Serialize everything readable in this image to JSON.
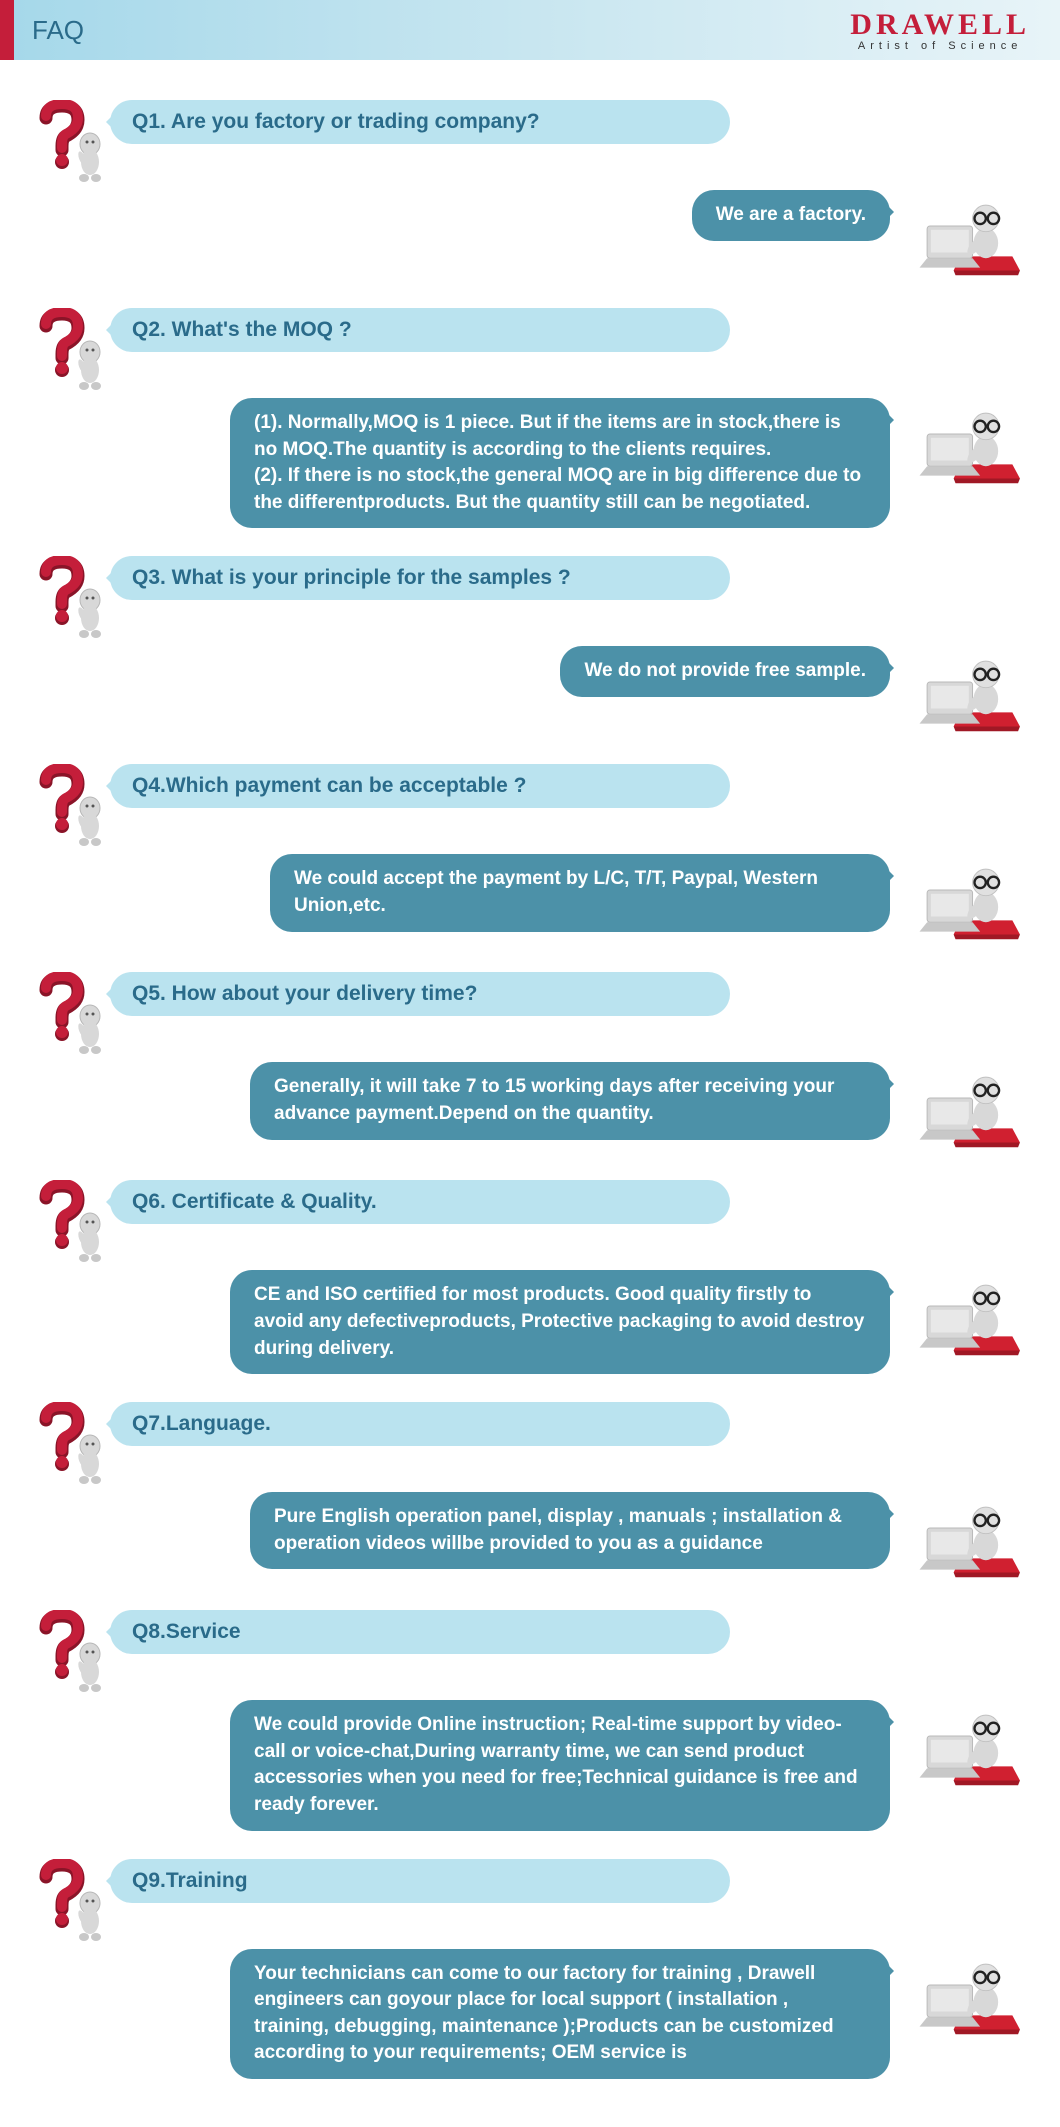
{
  "header": {
    "title": "FAQ",
    "brand_name": "DRAWELL",
    "brand_tagline": "Artist of Science",
    "accent_color": "#c41e3a",
    "bg_gradient_from": "#a5d8ea",
    "bg_gradient_to": "#e8f4f8",
    "title_color": "#2a6b8a"
  },
  "colors": {
    "question_bubble": "#bae3ef",
    "question_text": "#2a6b8a",
    "answer_bubble": "#4c91a8",
    "answer_text": "#ffffff",
    "qmark_red": "#c41e3a",
    "qmark_red_dark": "#8a1428",
    "figure_gray": "#d8d8d8",
    "figure_gray_dark": "#b8b8b8",
    "laptop_gray": "#c8c8c8",
    "cushion_red": "#d02030"
  },
  "typography": {
    "q_fontsize": 21,
    "a_fontsize": 19,
    "header_fontsize": 26,
    "brand_fontsize": 30,
    "font_family": "Arial"
  },
  "faq": [
    {
      "q": "Q1. Are you factory or trading company?",
      "a": "We are a factory."
    },
    {
      "q": "Q2. What's the MOQ ?",
      "a": "(1). Normally,MOQ is 1 piece. But if the items are in stock,there is no MOQ.The quantity is according to the clients requires.\n(2). If there is no stock,the general MOQ are in big difference due to the differentproducts. But the quantity still can be negotiated."
    },
    {
      "q": "Q3. What is your principle for the samples ?",
      "a": "We do not provide free sample."
    },
    {
      "q": "Q4.Which payment can be acceptable ?",
      "a": "We could accept the payment by L/C, T/T, Paypal, Western Union,etc."
    },
    {
      "q": "Q5. How about your delivery time?",
      "a": "Generally, it will take 7 to 15 working days after receiving your advance payment.Depend on the quantity."
    },
    {
      "q": "Q6. Certificate & Quality.",
      "a": "CE and ISO certified for most products. Good quality firstly to avoid any defectiveproducts, Protective packaging to avoid destroy during delivery."
    },
    {
      "q": "Q7.Language.",
      "a": "Pure English operation panel, display , manuals ; installation & operation videos willbe provided to you as a guidance"
    },
    {
      "q": "Q8.Service",
      "a": "We could provide Online instruction; Real-time support by video-call or voice-chat,During warranty time, we can send product accessories when you need for free;Technical guidance is free and ready forever."
    },
    {
      "q": "Q9.Training",
      "a": "Your technicians can come to our factory for training , Drawell engineers can goyour place for local support ( installation , training, debugging, maintenance );Products can be customized according to your requirements; OEM service is"
    }
  ]
}
